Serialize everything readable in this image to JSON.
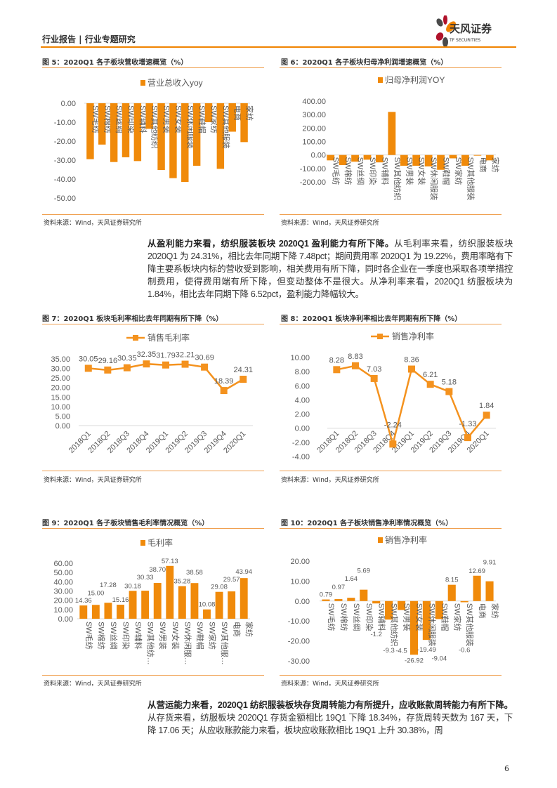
{
  "header": {
    "title": "行业报告 | 行业专题研究",
    "logo_name": "天风证券",
    "logo_sub": "TF SECURITIES"
  },
  "colors": {
    "accent": "#F08300",
    "bar": "#F08A0A",
    "line": "#F4921E"
  },
  "source_note": "资料来源：Wind，天风证券研究所",
  "paragraph1": {
    "bold": "从盈利能力来看，纺织服装板块 2020Q1 盈利能力有所下降。",
    "text": "从毛利率来看，纺织服装板块 2020Q1 为 24.31%，相比去年同期下降 7.48pct；期间费用率 2020Q1 为 19.22%，费用率略有下降主要系板块内标的营收受到影响，相关费用有所下降，同时各企业在一季度也采取各项举措控制费用，使得费用端有所下降，但变动整体不是很大。从净利率来看，2020Q1 纺服板块为 1.84%，相比去年同期下降 6.52pct，盈利能力降幅较大。"
  },
  "paragraph2": {
    "bold": "从营运能力来看，2020Q1 纺织服装板块存货周转能力有所提升，应收账款周转能力有所下降。",
    "text": "从存货来看，纺服板块 2020Q1 存货金额相比 19Q1 下降 18.34%，存货周转天数为 167 天，下降 17.06 天；从应收账款能力来看，板块应收账款相比 19Q1 上升 30.38%，周"
  },
  "page_number": "6",
  "chart_data": [
    {
      "type": "bar",
      "figure": "图 5：2020Q1 各子板块营收增速概览（%）",
      "legend": "营业总收入yoy",
      "ylim": [
        -50,
        0
      ],
      "yticks": [
        "0.00",
        "-10.00",
        "-20.00",
        "-30.00",
        "-40.00",
        "-50.00"
      ],
      "categories": [
        "SW毛纺",
        "SW棉纺",
        "SW丝绸",
        "SW印染",
        "SW辅料",
        "SW其他纺织",
        "SW男装",
        "SW女装",
        "SW休闲服装",
        "SW鞋帽",
        "SW家纺",
        "SW其他服装",
        "电商",
        "家纺"
      ],
      "values": [
        -29.5,
        -21.8,
        -31.0,
        -28.5,
        -30.5,
        -13.5,
        -35.2,
        -39.5,
        -41.5,
        -33.0,
        -10.0,
        -34.6,
        -15.0,
        -20.5
      ],
      "data_labels": false
    },
    {
      "type": "bar",
      "figure": "图 6：2020Q1 各子板块归母净利润增速概览（%）",
      "legend": "归母净利润YOY",
      "ylim": [
        -200,
        400
      ],
      "yticks": [
        "400.00",
        "300.00",
        "200.00",
        "100.00",
        "0.00",
        "-100.00",
        "-200.00"
      ],
      "categories": [
        "SW毛纺",
        "SW棉纺",
        "SW丝绸",
        "SW印染",
        "SW辅料",
        "SW其他纺织",
        "SW男装",
        "SW女装",
        "SW休闲服装",
        "SW鞋帽",
        "SW家纺",
        "SW其他服装",
        "电商",
        "家纺"
      ],
      "values": [
        -40,
        -75,
        -50,
        -35,
        -55,
        320,
        -80,
        -80,
        -85,
        -110,
        -25,
        -80,
        -3,
        -40
      ],
      "data_labels": false
    },
    {
      "type": "line",
      "figure": "图 7：2020Q1 板块毛利率相比去年同期有所下降（%）",
      "legend": "销售毛利率",
      "ylim": [
        0,
        35
      ],
      "yticks": [
        "35.00",
        "30.00",
        "25.00",
        "20.00",
        "15.00",
        "10.00",
        "5.00",
        "0.00"
      ],
      "categories": [
        "2018Q1",
        "2018Q2",
        "2018Q3",
        "2018Q4",
        "2019Q1",
        "2019Q2",
        "2019Q3",
        "2019Q4",
        "2020Q1"
      ],
      "values": [
        30.05,
        29.16,
        30.35,
        32.35,
        31.79,
        32.21,
        30.69,
        18.39,
        24.31
      ],
      "labels": [
        "30.05",
        "29.16",
        "30.35",
        "32.35",
        "31.79",
        "32.21",
        "30.69",
        "18.39",
        "24.31"
      ],
      "data_labels": true
    },
    {
      "type": "line",
      "figure": "图 8：2020Q1 板块净利率相比去年同期有所下降（%）",
      "legend": "销售净利率",
      "ylim": [
        -4,
        10
      ],
      "yticks": [
        "10.00",
        "8.00",
        "6.00",
        "4.00",
        "2.00",
        "0.00",
        "-2.00",
        "-4.00"
      ],
      "categories": [
        "2018Q1",
        "2018Q2",
        "2018Q3",
        "2018Q4",
        "2019Q1",
        "2019Q2",
        "2019Q3",
        "2019Q4",
        "2020Q1"
      ],
      "values": [
        8.28,
        8.83,
        7.03,
        -2.24,
        8.36,
        6.21,
        5.18,
        -1.33,
        1.84
      ],
      "labels": [
        "8.28",
        "8.83",
        "7.03",
        "-2.24",
        "8.36",
        "6.21",
        "5.18",
        "-1.33",
        "1.84"
      ],
      "data_labels": true
    },
    {
      "type": "bar",
      "figure": "图 9：2020Q1 各子板块销售毛利率情况概览（%）",
      "legend": "毛利率",
      "ylim": [
        0,
        60
      ],
      "yticks": [
        "60.00",
        "50.00",
        "40.00",
        "30.00",
        "20.00",
        "10.00",
        "0.00"
      ],
      "categories": [
        "SW毛纺",
        "SW棉纺",
        "SW丝绸",
        "SW印染",
        "SW辅料",
        "SW其他纺…",
        "SW男装",
        "SW女装",
        "SW休闲服…",
        "SW鞋帽",
        "SW家纺",
        "SW其他服…",
        "电商",
        "家纺"
      ],
      "values": [
        14.36,
        15.0,
        17.28,
        15.16,
        30.18,
        30.33,
        38.7,
        57.13,
        35.28,
        38.58,
        10.08,
        29.08,
        29.57,
        43.94
      ],
      "labels": [
        "14.36",
        "15.00",
        "17.28",
        "15.16",
        "30.18",
        "30.33",
        "38.70",
        "57.13",
        "35.28",
        "38.58",
        "10.08",
        "29.08",
        "29.57",
        "43.94"
      ],
      "data_labels": true
    },
    {
      "type": "bar",
      "figure": "图 10：2020Q1 各子板块销售净利率情况概览（%）",
      "legend": "销售净利率",
      "ylim": [
        -30,
        20
      ],
      "yticks": [
        "20.00",
        "10.00",
        "0.00",
        "-10.00",
        "-20.00",
        "-30.00"
      ],
      "categories": [
        "SW毛纺",
        "SW棉纺",
        "SW丝绸",
        "SW印染",
        "SW辅料",
        "SW其他纺织",
        "SW男装",
        "SW女装",
        "SW休闲服装",
        "SW鞋帽",
        "SW家纺",
        "SW其他服装",
        "电商",
        "家纺"
      ],
      "values": [
        0.79,
        0.97,
        1.64,
        5.69,
        -1.2,
        -9.3,
        -4.5,
        -26.92,
        -19.49,
        -9.04,
        8.15,
        -0.6,
        12.69,
        9.91
      ],
      "labels": [
        "0.79",
        "0.97",
        "1.64",
        "5.69",
        "-1.2",
        "-9.3",
        "-4.5",
        "-26.92",
        "-19.49",
        "-9.04",
        "8.15",
        "-0.6",
        "12.69",
        "9.91"
      ],
      "data_labels": true
    }
  ]
}
